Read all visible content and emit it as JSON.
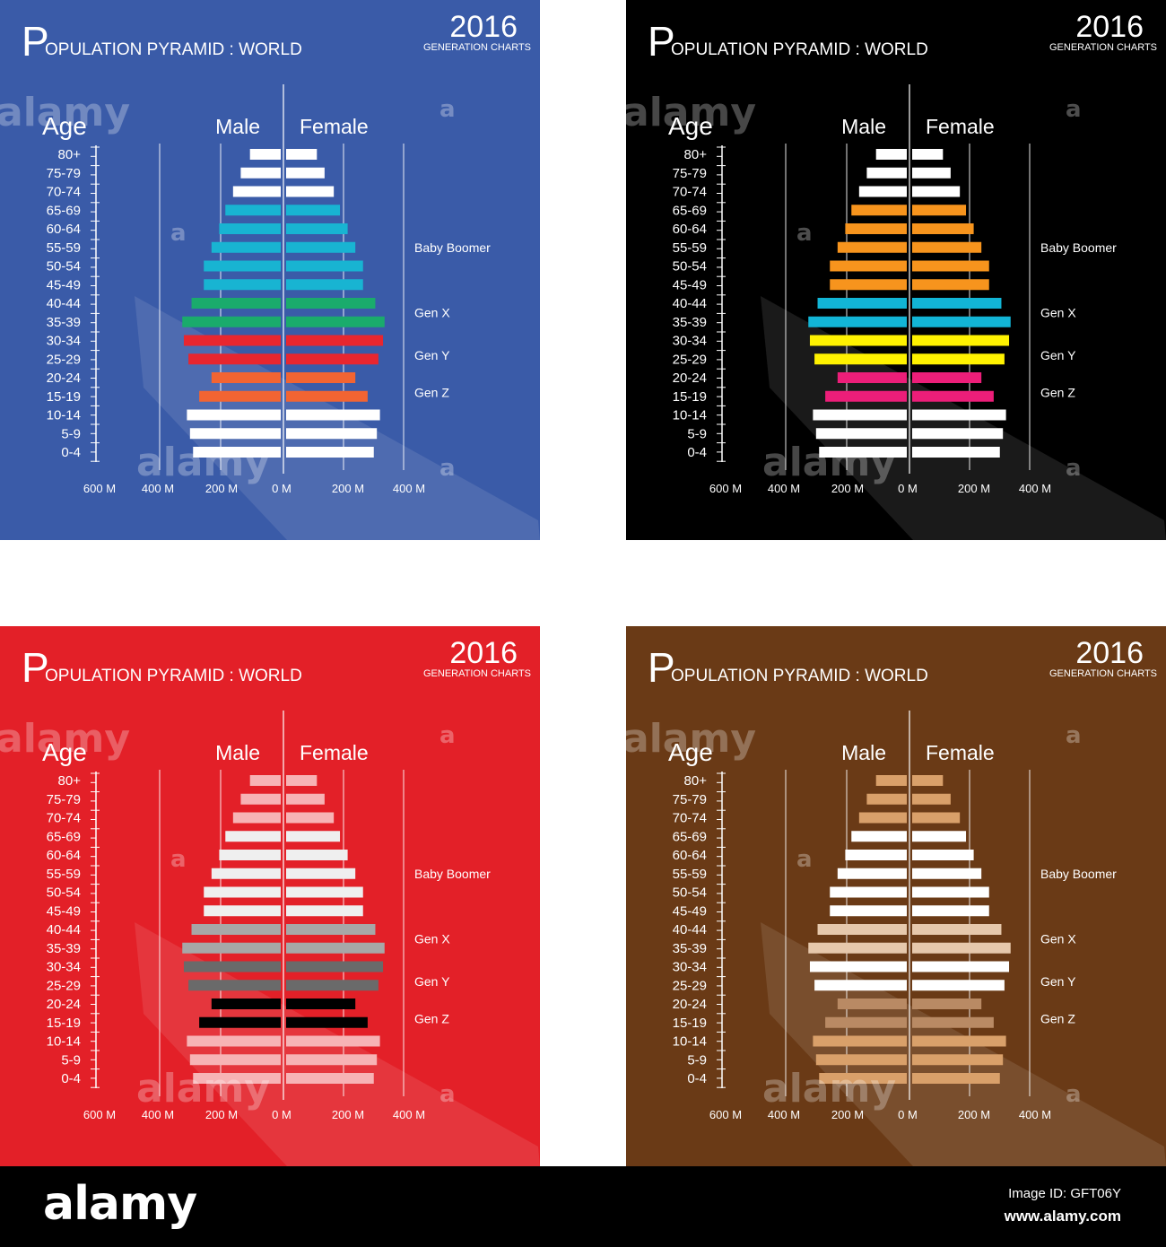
{
  "footer": {
    "logo": "alamy",
    "image_id": "Image ID: GFT06Y",
    "site": "www.alamy.com"
  },
  "watermark": {
    "word": "alamy",
    "letter": "a"
  },
  "chart_data": [
    {
      "type": "bar",
      "variant": "population-pyramid",
      "theme": "blue",
      "background": "#3a5ba8",
      "text_color": "#ffffff",
      "title_initial": "P",
      "title_rest": "OPULATION PYRAMID : WORLD",
      "year": "2016",
      "subtitle": "GENERATION CHARTS",
      "axis_title": "Age",
      "male_label": "Male",
      "female_label": "Female",
      "x_tick_labels": [
        "600 M",
        "400 M",
        "200 M",
        "0 M",
        "200 M",
        "400 M"
      ],
      "categories": [
        "80+",
        "75-79",
        "70-74",
        "65-69",
        "60-64",
        "55-59",
        "50-54",
        "45-49",
        "40-44",
        "35-39",
        "30-34",
        "25-29",
        "20-24",
        "15-19",
        "10-14",
        "5-9",
        "0-4"
      ],
      "series": [
        {
          "name": "Male",
          "values": [
            100,
            130,
            155,
            180,
            200,
            225,
            250,
            250,
            290,
            320,
            315,
            300,
            225,
            265,
            305,
            295,
            285
          ]
        },
        {
          "name": "Female",
          "values": [
            100,
            125,
            155,
            175,
            200,
            225,
            250,
            250,
            290,
            320,
            315,
            300,
            225,
            265,
            305,
            295,
            285
          ]
        }
      ],
      "bar_colors": [
        "#ffffff",
        "#ffffff",
        "#ffffff",
        "#18b4d2",
        "#18b4d2",
        "#18b4d2",
        "#18b4d2",
        "#18b4d2",
        "#1aab6c",
        "#1aab6c",
        "#e8262f",
        "#e8262f",
        "#f26432",
        "#f26432",
        "#ffffff",
        "#ffffff",
        "#ffffff"
      ],
      "generations": [
        {
          "label": "Baby Boomer",
          "age_index": 5
        },
        {
          "label": "Gen X",
          "age_index": 8.5
        },
        {
          "label": "Gen Y",
          "age_index": 10.8
        },
        {
          "label": "Gen Z",
          "age_index": 12.8
        }
      ]
    },
    {
      "type": "bar",
      "variant": "population-pyramid",
      "theme": "black",
      "background": "#000000",
      "text_color": "#ffffff",
      "title_initial": "P",
      "title_rest": "OPULATION PYRAMID : WORLD",
      "year": "2016",
      "subtitle": "GENERATION CHARTS",
      "axis_title": "Age",
      "male_label": "Male",
      "female_label": "Female",
      "x_tick_labels": [
        "600 M",
        "400 M",
        "200 M",
        "0 M",
        "200 M",
        "400 M"
      ],
      "categories": [
        "80+",
        "75-79",
        "70-74",
        "65-69",
        "60-64",
        "55-59",
        "50-54",
        "45-49",
        "40-44",
        "35-39",
        "30-34",
        "25-29",
        "20-24",
        "15-19",
        "10-14",
        "5-9",
        "0-4"
      ],
      "series": [
        {
          "name": "Male",
          "values": [
            100,
            130,
            155,
            180,
            200,
            225,
            250,
            250,
            290,
            320,
            315,
            300,
            225,
            265,
            305,
            295,
            285
          ]
        },
        {
          "name": "Female",
          "values": [
            100,
            125,
            155,
            175,
            200,
            225,
            250,
            250,
            290,
            320,
            315,
            300,
            225,
            265,
            305,
            295,
            285
          ]
        }
      ],
      "bar_colors": [
        "#ffffff",
        "#ffffff",
        "#ffffff",
        "#f7941d",
        "#f7941d",
        "#f7941d",
        "#f7941d",
        "#f7941d",
        "#12b5d6",
        "#12b5d6",
        "#fff200",
        "#fff200",
        "#ec1e79",
        "#ec1e79",
        "#ffffff",
        "#ffffff",
        "#ffffff"
      ],
      "generations": [
        {
          "label": "Baby Boomer",
          "age_index": 5
        },
        {
          "label": "Gen X",
          "age_index": 8.5
        },
        {
          "label": "Gen Y",
          "age_index": 10.8
        },
        {
          "label": "Gen Z",
          "age_index": 12.8
        }
      ]
    },
    {
      "type": "bar",
      "variant": "population-pyramid",
      "theme": "red",
      "background": "#e32028",
      "text_color": "#ffffff",
      "title_initial": "P",
      "title_rest": "OPULATION PYRAMID : WORLD",
      "year": "2016",
      "subtitle": "GENERATION CHARTS",
      "axis_title": "Age",
      "male_label": "Male",
      "female_label": "Female",
      "x_tick_labels": [
        "600 M",
        "400 M",
        "200 M",
        "0 M",
        "200 M",
        "400 M"
      ],
      "categories": [
        "80+",
        "75-79",
        "70-74",
        "65-69",
        "60-64",
        "55-59",
        "50-54",
        "45-49",
        "40-44",
        "35-39",
        "30-34",
        "25-29",
        "20-24",
        "15-19",
        "10-14",
        "5-9",
        "0-4"
      ],
      "series": [
        {
          "name": "Male",
          "values": [
            100,
            130,
            155,
            180,
            200,
            225,
            250,
            250,
            290,
            320,
            315,
            300,
            225,
            265,
            305,
            295,
            285
          ]
        },
        {
          "name": "Female",
          "values": [
            100,
            125,
            155,
            175,
            200,
            225,
            250,
            250,
            290,
            320,
            315,
            300,
            225,
            265,
            305,
            295,
            285
          ]
        }
      ],
      "bar_colors": [
        "#f7b3b5",
        "#f7b3b5",
        "#f7b3b5",
        "#efefef",
        "#efefef",
        "#efefef",
        "#efefef",
        "#efefef",
        "#a7a7a7",
        "#a7a7a7",
        "#6a6a6a",
        "#6a6a6a",
        "#000000",
        "#000000",
        "#f7b3b5",
        "#f7b3b5",
        "#f7b3b5"
      ],
      "generations": [
        {
          "label": "Baby Boomer",
          "age_index": 5
        },
        {
          "label": "Gen X",
          "age_index": 8.5
        },
        {
          "label": "Gen Y",
          "age_index": 10.8
        },
        {
          "label": "Gen Z",
          "age_index": 12.8
        }
      ]
    },
    {
      "type": "bar",
      "variant": "population-pyramid",
      "theme": "brown",
      "background": "#6a3a16",
      "text_color": "#ffffff",
      "title_initial": "P",
      "title_rest": "OPULATION PYRAMID : WORLD",
      "year": "2016",
      "subtitle": "GENERATION CHARTS",
      "axis_title": "Age",
      "male_label": "Male",
      "female_label": "Female",
      "x_tick_labels": [
        "600 M",
        "400 M",
        "200 M",
        "0 M",
        "200 M",
        "400 M"
      ],
      "categories": [
        "80+",
        "75-79",
        "70-74",
        "65-69",
        "60-64",
        "55-59",
        "50-54",
        "45-49",
        "40-44",
        "35-39",
        "30-34",
        "25-29",
        "20-24",
        "15-19",
        "10-14",
        "5-9",
        "0-4"
      ],
      "series": [
        {
          "name": "Male",
          "values": [
            100,
            130,
            155,
            180,
            200,
            225,
            250,
            250,
            290,
            320,
            315,
            300,
            225,
            265,
            305,
            295,
            285
          ]
        },
        {
          "name": "Female",
          "values": [
            100,
            125,
            155,
            175,
            200,
            225,
            250,
            250,
            290,
            320,
            315,
            300,
            225,
            265,
            305,
            295,
            285
          ]
        }
      ],
      "bar_colors": [
        "#d9a06a",
        "#d9a06a",
        "#d9a06a",
        "#ffffff",
        "#ffffff",
        "#ffffff",
        "#ffffff",
        "#ffffff",
        "#e6c8ac",
        "#e6c8ac",
        "#ffffff",
        "#ffffff",
        "#b98a64",
        "#b98a64",
        "#d9a06a",
        "#d9a06a",
        "#d9a06a"
      ],
      "generations": [
        {
          "label": "Baby Boomer",
          "age_index": 5
        },
        {
          "label": "Gen X",
          "age_index": 8.5
        },
        {
          "label": "Gen Y",
          "age_index": 10.8
        },
        {
          "label": "Gen Z",
          "age_index": 12.8
        }
      ]
    }
  ]
}
